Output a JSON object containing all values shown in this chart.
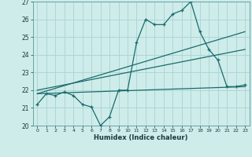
{
  "xlabel": "Humidex (Indice chaleur)",
  "bg_color": "#ceecea",
  "grid_color": "#a8d4d2",
  "line_color": "#1a6b6b",
  "xlim": [
    -0.5,
    23.5
  ],
  "ylim": [
    20,
    27
  ],
  "xticks": [
    0,
    1,
    2,
    3,
    4,
    5,
    6,
    7,
    8,
    9,
    10,
    11,
    12,
    13,
    14,
    15,
    16,
    17,
    18,
    19,
    20,
    21,
    22,
    23
  ],
  "yticks": [
    20,
    21,
    22,
    23,
    24,
    25,
    26,
    27
  ],
  "series1_x": [
    0,
    1,
    2,
    3,
    4,
    5,
    6,
    7,
    8,
    9,
    10,
    11,
    12,
    13,
    14,
    15,
    16,
    17,
    18,
    19,
    20,
    21,
    22,
    23
  ],
  "series1_y": [
    21.2,
    21.8,
    21.7,
    21.9,
    21.7,
    21.2,
    21.05,
    20.0,
    20.5,
    22.0,
    22.0,
    24.7,
    26.0,
    25.7,
    25.7,
    26.3,
    26.5,
    27.0,
    25.3,
    24.3,
    23.7,
    22.2,
    22.2,
    22.3
  ],
  "trend1_x": [
    0,
    23
  ],
  "trend1_y": [
    21.8,
    22.2
  ],
  "trend2_x": [
    0,
    23
  ],
  "trend2_y": [
    21.8,
    25.3
  ],
  "trend3_x": [
    0,
    23
  ],
  "trend3_y": [
    22.0,
    24.3
  ]
}
